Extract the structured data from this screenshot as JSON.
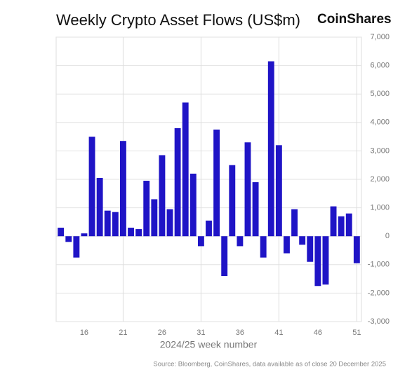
{
  "chart_data": {
    "type": "bar",
    "title": "Weekly Crypto Asset Flows (US$m)",
    "brand": "CoinShares",
    "x_label": "2024/25 week number",
    "source": "Source: Bloomberg, CoinShares, data available as of close 20 December 2025",
    "x": [
      13,
      14,
      15,
      16,
      17,
      18,
      19,
      20,
      21,
      22,
      23,
      24,
      25,
      26,
      27,
      28,
      29,
      30,
      31,
      32,
      33,
      34,
      35,
      36,
      37,
      38,
      39,
      40,
      41,
      42,
      43,
      44,
      45,
      46,
      47,
      48,
      49,
      50,
      51
    ],
    "values": [
      300,
      -200,
      -750,
      100,
      3500,
      2050,
      900,
      850,
      3350,
      300,
      250,
      1950,
      1300,
      2850,
      950,
      3800,
      4700,
      2200,
      -350,
      550,
      3750,
      -1400,
      2500,
      -350,
      3300,
      1900,
      -750,
      6150,
      3200,
      -600,
      950,
      -300,
      -900,
      -1750,
      -1700,
      1050,
      700,
      800,
      -950
    ],
    "color": "#1f14c6",
    "xlim": [
      12.4,
      51.6
    ],
    "xticks": [
      16,
      21,
      26,
      31,
      36,
      41,
      46,
      51
    ],
    "ylim": [
      -3000,
      7000
    ],
    "yticks": [
      {
        "value": -3000,
        "label": "-3,000"
      },
      {
        "value": -2000,
        "label": "-2,000"
      },
      {
        "value": -1000,
        "label": "-1,000"
      },
      0,
      {
        "value": 1000,
        "label": "1,000"
      },
      {
        "value": 2000,
        "label": "2,000"
      },
      {
        "value": 3000,
        "label": "3,000"
      },
      {
        "value": 4000,
        "label": "4,000"
      },
      {
        "value": 5000,
        "label": "5,000"
      },
      {
        "value": 6000,
        "label": "6,000"
      },
      {
        "value": 7000,
        "label": "7,000"
      }
    ],
    "grid": true
  }
}
